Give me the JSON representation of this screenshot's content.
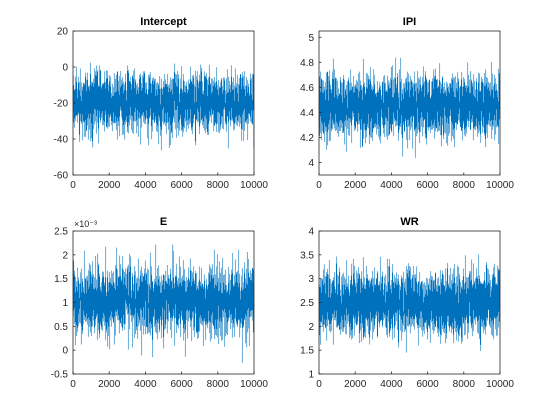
{
  "figure": {
    "background": "#ffffff",
    "trace_color": "#0072BD",
    "axis_color": "#262626"
  },
  "chart_data": [
    {
      "type": "line",
      "title": "Intercept",
      "xlim": [
        0,
        10000
      ],
      "ylim": [
        -60,
        20
      ],
      "xticks": [
        "0",
        "2000",
        "4000",
        "6000",
        "8000",
        "10000"
      ],
      "yticks": [
        "-60",
        "-40",
        "-20",
        "0",
        "20"
      ],
      "exponent_label": "",
      "series": [
        {
          "n_samples": 10000,
          "mean": -19.5,
          "std": 8.0,
          "min": -58,
          "max": 15
        }
      ]
    },
    {
      "type": "line",
      "title": "IPI",
      "xlim": [
        0,
        10000
      ],
      "ylim": [
        3.9,
        5.05
      ],
      "xticks": [
        "0",
        "2000",
        "4000",
        "6000",
        "8000",
        "10000"
      ],
      "yticks": [
        "4",
        "4.2",
        "4.4",
        "4.6",
        "4.8",
        "5"
      ],
      "exponent_label": "",
      "series": [
        {
          "n_samples": 10000,
          "mean": 4.45,
          "std": 0.12,
          "min": 3.9,
          "max": 5.05
        }
      ]
    },
    {
      "type": "line",
      "title": "E",
      "xlim": [
        0,
        10000
      ],
      "ylim": [
        -0.0005,
        0.0025
      ],
      "xticks": [
        "0",
        "2000",
        "4000",
        "6000",
        "8000",
        "10000"
      ],
      "yticks": [
        "-0.5",
        "0",
        "0.5",
        "1",
        "1.5",
        "2",
        "2.5"
      ],
      "exponent_label": "×10⁻³",
      "series": [
        {
          "n_samples": 10000,
          "mean": 0.00104,
          "std": 0.00035,
          "min": -0.00035,
          "max": 0.0023
        }
      ]
    },
    {
      "type": "line",
      "title": "WR",
      "xlim": [
        0,
        10000
      ],
      "ylim": [
        1,
        4
      ],
      "xticks": [
        "0",
        "2000",
        "4000",
        "6000",
        "8000",
        "10000"
      ],
      "yticks": [
        "1",
        "1.5",
        "2",
        "2.5",
        "3",
        "3.5",
        "4"
      ],
      "exponent_label": "",
      "series": [
        {
          "n_samples": 10000,
          "mean": 2.5,
          "std": 0.33,
          "min": 1.1,
          "max": 3.8
        }
      ]
    }
  ]
}
